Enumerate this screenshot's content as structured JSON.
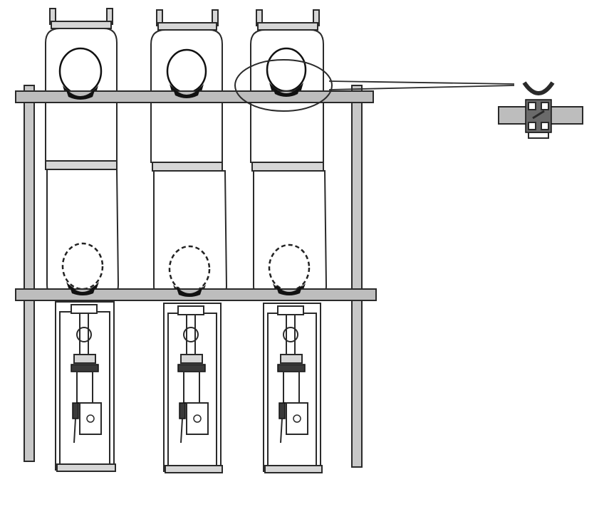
{
  "figure": {
    "colors": {
      "ink": "#2a2a2a",
      "bar_fill": "#bdbdbd",
      "cup_fill": "#111111",
      "background": "#ffffff"
    },
    "units": [
      {
        "id": "left"
      },
      {
        "id": "middle"
      },
      {
        "id": "right"
      }
    ],
    "callout": {
      "target": "right-unit-upper-egg-holder",
      "detail": "egg-holder-clamp-detail"
    }
  }
}
